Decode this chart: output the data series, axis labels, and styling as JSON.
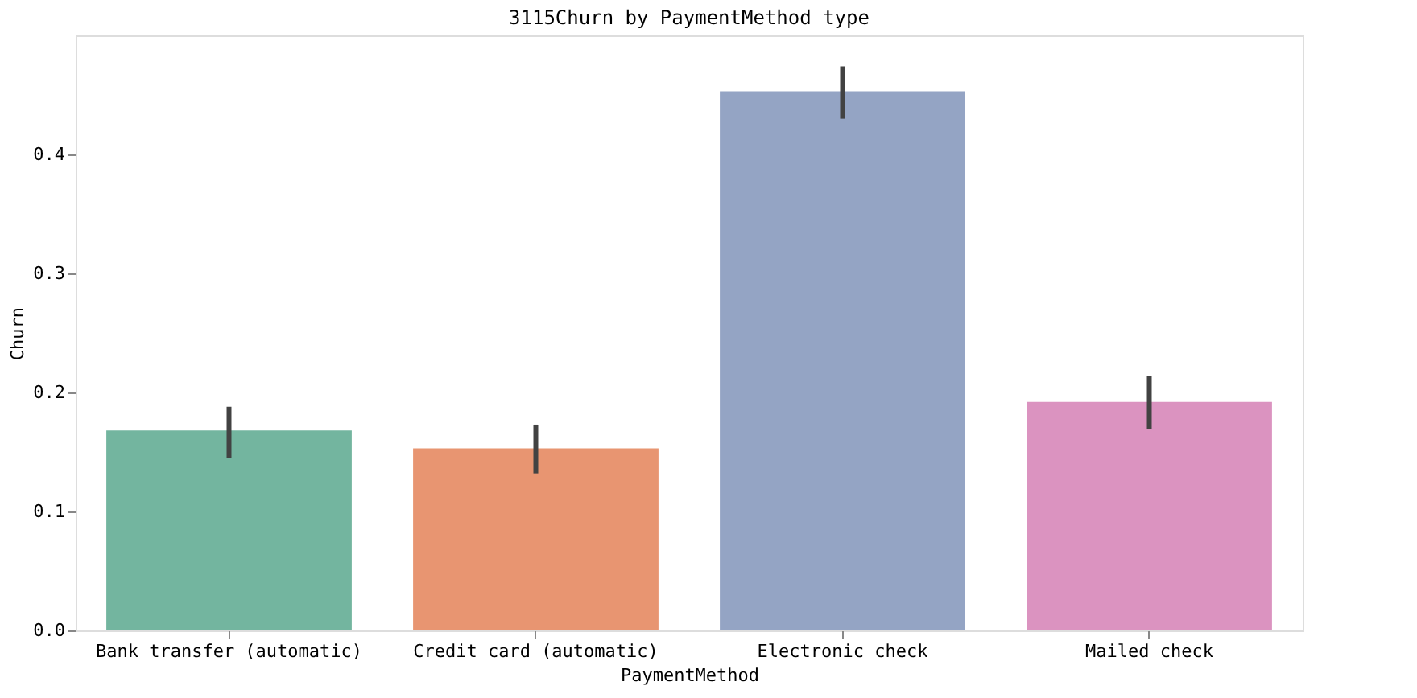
{
  "chart_data": {
    "type": "bar",
    "title": "3115Churn by PaymentMethod type",
    "xlabel": "PaymentMethod",
    "ylabel": "Churn",
    "categories": [
      "Bank transfer (automatic)",
      "Credit card (automatic)",
      "Electronic check",
      "Mailed check"
    ],
    "values": [
      0.168,
      0.153,
      0.453,
      0.192
    ],
    "colors": [
      "#73b59f",
      "#e89571",
      "#94a4c4",
      "#db93c0"
    ],
    "errors": [
      [
        0.145,
        0.188
      ],
      [
        0.132,
        0.173
      ],
      [
        0.43,
        0.474
      ],
      [
        0.169,
        0.214
      ]
    ],
    "ylim": [
      0,
      0.5
    ],
    "yticks": [
      {
        "value": 0,
        "label": "0.0"
      },
      {
        "value": 0.1,
        "label": "0.1"
      },
      {
        "value": 0.2,
        "label": "0.2"
      },
      {
        "value": 0.3,
        "label": "0.3"
      },
      {
        "value": 0.4,
        "label": "0.4"
      }
    ],
    "grid": false,
    "legend": false
  }
}
